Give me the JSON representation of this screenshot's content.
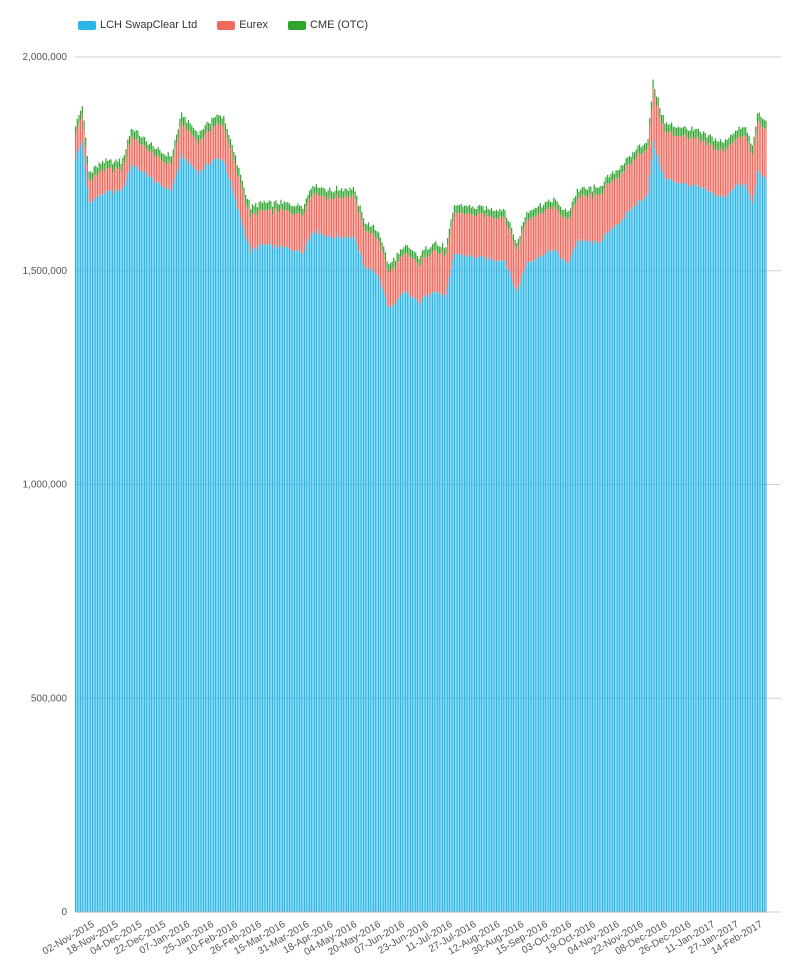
{
  "legend": [
    {
      "label": "LCH SwapClear Ltd",
      "color": "#29b6e6"
    },
    {
      "label": "Eurex",
      "color": "#ee6a5f"
    },
    {
      "label": "CME (OTC)",
      "color": "#2ea62e"
    }
  ],
  "chart_data": {
    "type": "bar",
    "stacked": true,
    "grid": true,
    "legend_position": "top-left",
    "ylim": [
      0,
      2000000
    ],
    "y_ticks": [
      "0",
      "500,000",
      "1,000,000",
      "1,500,000",
      "2,000,000"
    ],
    "y_tick_values": [
      0,
      500000,
      1000000,
      1500000,
      2000000
    ],
    "x_tick_labels": [
      "02-Nov-2015",
      "18-Nov-2015",
      "04-Dec-2015",
      "22-Dec-2015",
      "07-Jan-2016",
      "25-Jan-2016",
      "10-Feb-2016",
      "26-Feb-2016",
      "15-Mar-2016",
      "31-Mar-2016",
      "18-Apr-2016",
      "04-May-2016",
      "20-May-2016",
      "07-Jun-2016",
      "23-Jun-2016",
      "11-Jul-2016",
      "27-Jul-2016",
      "12-Aug-2016",
      "30-Aug-2016",
      "15-Sep-2016",
      "03-Oct-2016",
      "19-Oct-2016",
      "04-Nov-2016",
      "22-Nov-2016",
      "08-Dec-2016",
      "26-Dec-2016",
      "11-Jan-2017",
      "27-Jan-2017",
      "14-Feb-2017"
    ],
    "series_names": [
      "LCH SwapClear Ltd",
      "Eurex",
      "CME (OTC)"
    ],
    "keyframes": [
      {
        "t": 0,
        "lch": 1765000,
        "eurex": 60000,
        "cme": 20000
      },
      {
        "t": 4,
        "lch": 1805000,
        "eurex": 60000,
        "cme": 20000
      },
      {
        "t": 8,
        "lch": 1660000,
        "eurex": 50000,
        "cme": 20000
      },
      {
        "t": 16,
        "lch": 1680000,
        "eurex": 55000,
        "cme": 20000
      },
      {
        "t": 28,
        "lch": 1690000,
        "eurex": 50000,
        "cme": 18000
      },
      {
        "t": 33,
        "lch": 1750000,
        "eurex": 65000,
        "cme": 20000
      },
      {
        "t": 44,
        "lch": 1720000,
        "eurex": 60000,
        "cme": 18000
      },
      {
        "t": 50,
        "lch": 1700000,
        "eurex": 60000,
        "cme": 18000
      },
      {
        "t": 57,
        "lch": 1690000,
        "eurex": 60000,
        "cme": 18000
      },
      {
        "t": 63,
        "lch": 1770000,
        "eurex": 75000,
        "cme": 20000
      },
      {
        "t": 73,
        "lch": 1730000,
        "eurex": 70000,
        "cme": 20000
      },
      {
        "t": 82,
        "lch": 1760000,
        "eurex": 80000,
        "cme": 20000
      },
      {
        "t": 88,
        "lch": 1760000,
        "eurex": 80000,
        "cme": 20000
      },
      {
        "t": 96,
        "lch": 1650000,
        "eurex": 80000,
        "cme": 20000
      },
      {
        "t": 104,
        "lch": 1545000,
        "eurex": 80000,
        "cme": 20000
      },
      {
        "t": 110,
        "lch": 1560000,
        "eurex": 80000,
        "cme": 20000
      },
      {
        "t": 123,
        "lch": 1555000,
        "eurex": 85000,
        "cme": 18000
      },
      {
        "t": 135,
        "lch": 1545000,
        "eurex": 90000,
        "cme": 18000
      },
      {
        "t": 141,
        "lch": 1595000,
        "eurex": 90000,
        "cme": 18000
      },
      {
        "t": 150,
        "lch": 1580000,
        "eurex": 90000,
        "cme": 18000
      },
      {
        "t": 165,
        "lch": 1580000,
        "eurex": 95000,
        "cme": 18000
      },
      {
        "t": 172,
        "lch": 1510000,
        "eurex": 85000,
        "cme": 18000
      },
      {
        "t": 180,
        "lch": 1490000,
        "eurex": 85000,
        "cme": 18000
      },
      {
        "t": 186,
        "lch": 1410000,
        "eurex": 85000,
        "cme": 18000
      },
      {
        "t": 196,
        "lch": 1450000,
        "eurex": 90000,
        "cme": 18000
      },
      {
        "t": 204,
        "lch": 1425000,
        "eurex": 90000,
        "cme": 18000
      },
      {
        "t": 212,
        "lch": 1455000,
        "eurex": 95000,
        "cme": 18000
      },
      {
        "t": 220,
        "lch": 1440000,
        "eurex": 95000,
        "cme": 18000
      },
      {
        "t": 225,
        "lch": 1540000,
        "eurex": 95000,
        "cme": 18000
      },
      {
        "t": 240,
        "lch": 1530000,
        "eurex": 100000,
        "cme": 18000
      },
      {
        "t": 255,
        "lch": 1525000,
        "eurex": 100000,
        "cme": 18000
      },
      {
        "t": 262,
        "lch": 1450000,
        "eurex": 100000,
        "cme": 15000
      },
      {
        "t": 268,
        "lch": 1520000,
        "eurex": 100000,
        "cme": 18000
      },
      {
        "t": 284,
        "lch": 1550000,
        "eurex": 100000,
        "cme": 18000
      },
      {
        "t": 292,
        "lch": 1515000,
        "eurex": 100000,
        "cme": 18000
      },
      {
        "t": 298,
        "lch": 1570000,
        "eurex": 100000,
        "cme": 18000
      },
      {
        "t": 310,
        "lch": 1565000,
        "eurex": 110000,
        "cme": 18000
      },
      {
        "t": 322,
        "lch": 1610000,
        "eurex": 110000,
        "cme": 18000
      },
      {
        "t": 334,
        "lch": 1660000,
        "eurex": 110000,
        "cme": 18000
      },
      {
        "t": 340,
        "lch": 1680000,
        "eurex": 110000,
        "cme": 18000
      },
      {
        "t": 343,
        "lch": 1800000,
        "eurex": 120000,
        "cme": 20000
      },
      {
        "t": 350,
        "lch": 1715000,
        "eurex": 110000,
        "cme": 20000
      },
      {
        "t": 370,
        "lch": 1695000,
        "eurex": 110000,
        "cme": 20000
      },
      {
        "t": 385,
        "lch": 1670000,
        "eurex": 110000,
        "cme": 20000
      },
      {
        "t": 392,
        "lch": 1700000,
        "eurex": 110000,
        "cme": 20000
      },
      {
        "t": 398,
        "lch": 1700000,
        "eurex": 115000,
        "cme": 20000
      },
      {
        "t": 402,
        "lch": 1655000,
        "eurex": 115000,
        "cme": 20000
      },
      {
        "t": 405,
        "lch": 1730000,
        "eurex": 115000,
        "cme": 20000
      },
      {
        "t": 410,
        "lch": 1715000,
        "eurex": 115000,
        "cme": 20000
      }
    ],
    "n_bars": 411
  }
}
